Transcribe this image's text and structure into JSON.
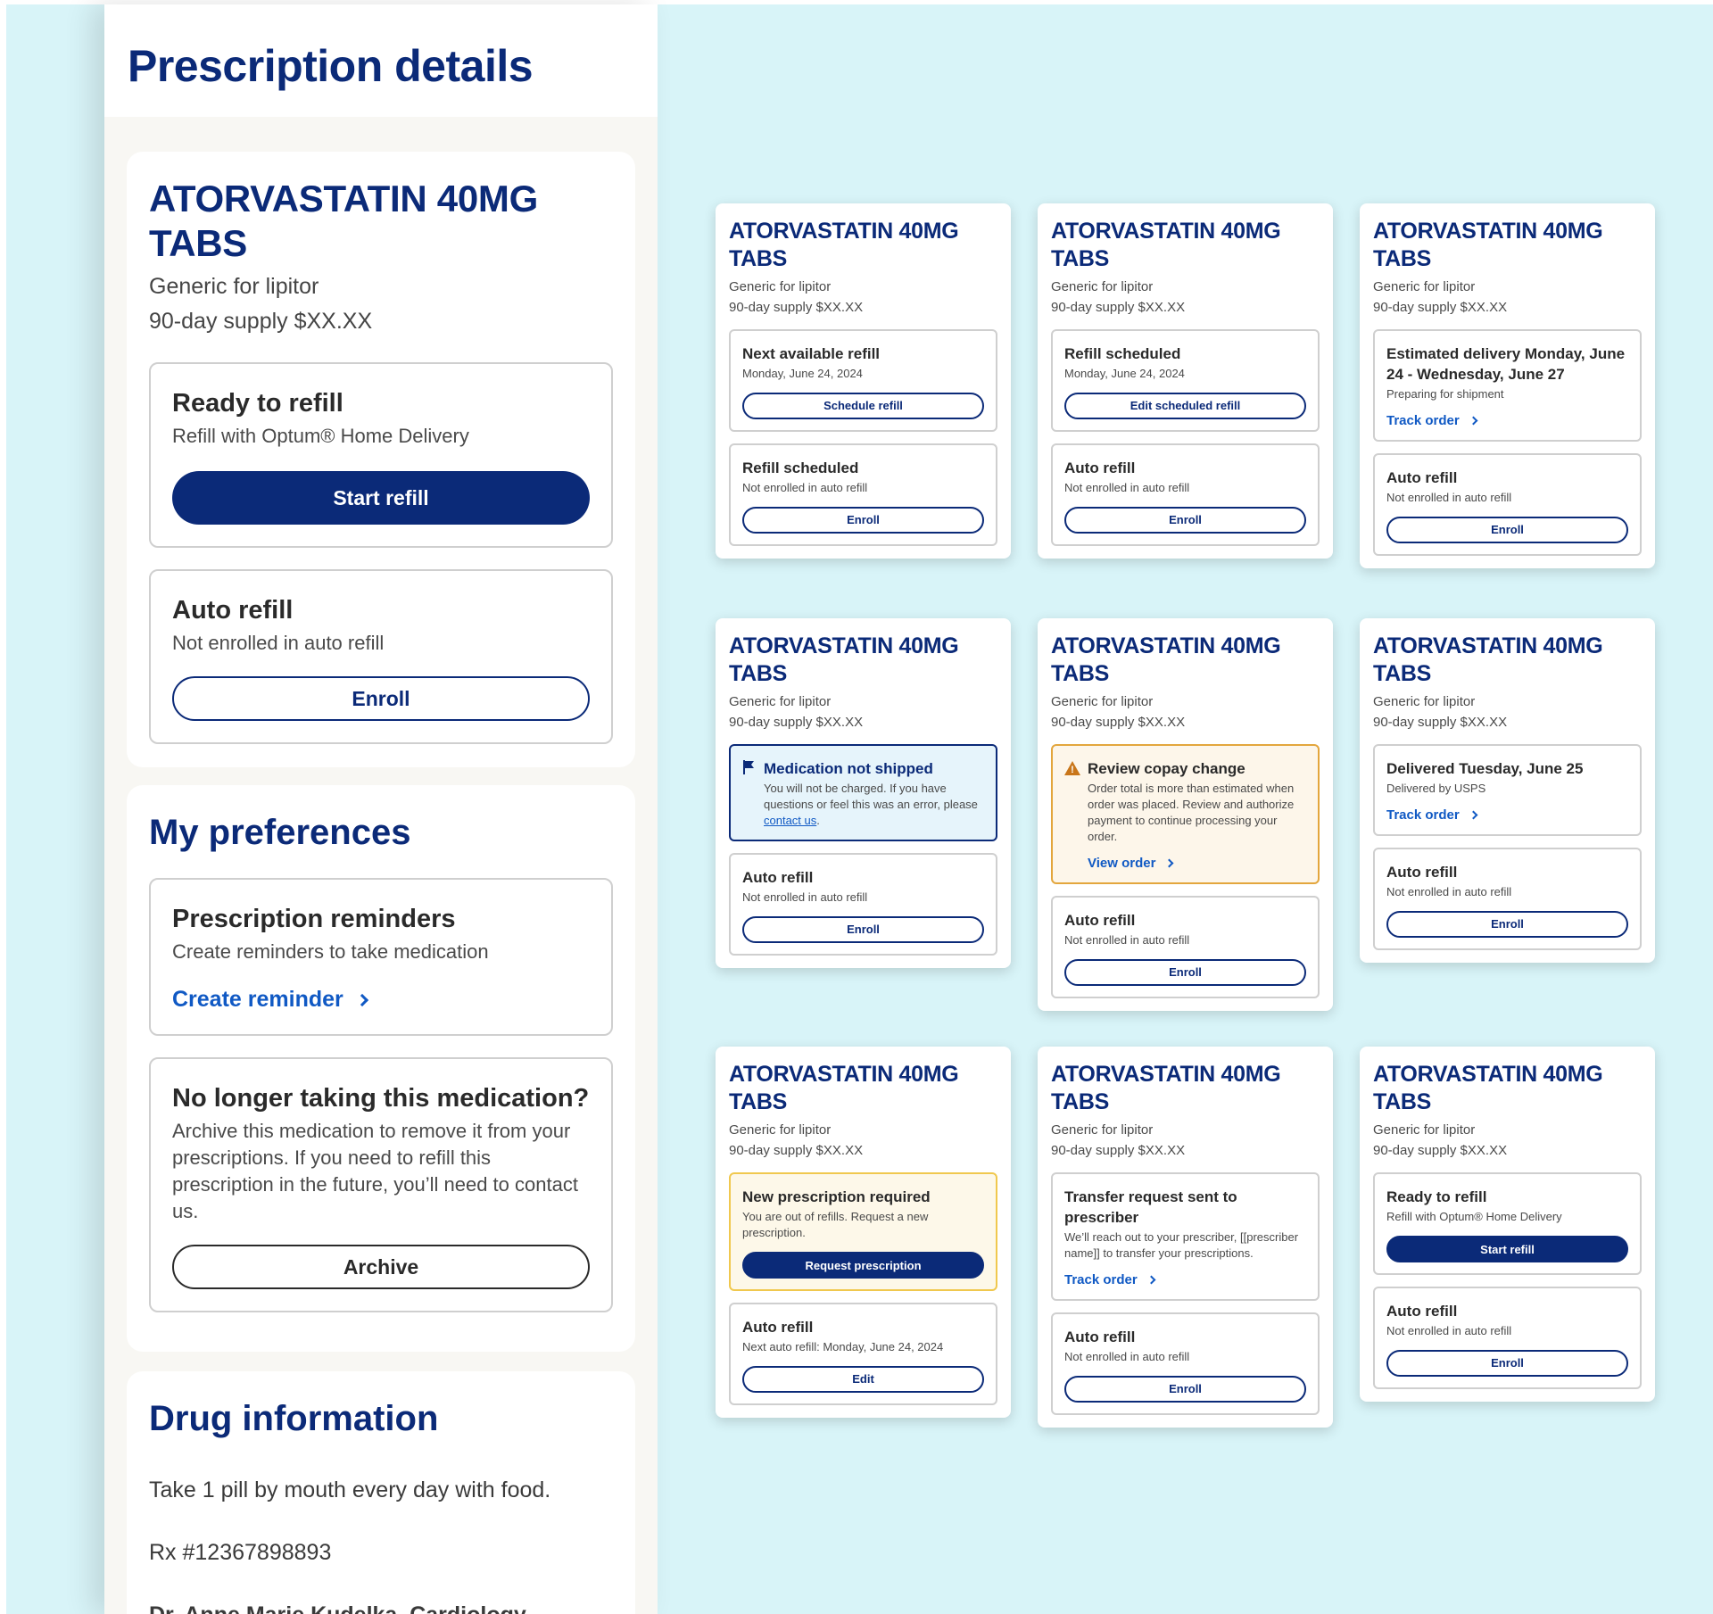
{
  "panel": {
    "page_title": "Prescription details",
    "drug": {
      "name": "ATORVASTATIN 40MG TABS",
      "generic": "Generic for lipitor",
      "supply": "90-day supply $XX.XX"
    },
    "ready_box": {
      "title": "Ready to refill",
      "subtitle": "Refill with Optum® Home Delivery",
      "button": "Start refill"
    },
    "auto_box": {
      "title": "Auto refill",
      "subtitle": "Not enrolled in auto refill",
      "button": "Enroll"
    },
    "preferences": {
      "title": "My preferences",
      "reminders_title": "Prescription reminders",
      "reminders_sub": "Create reminders to take medication",
      "reminders_link": "Create reminder",
      "archive_title": "No longer taking this medication?",
      "archive_sub": "Archive this medication to remove it from your prescriptions. If you need to refill this prescription in the future, you’ll need to contact us.",
      "archive_button": "Archive"
    },
    "drug_info": {
      "title": "Drug information",
      "directions": "Take 1 pill by mouth every day with food.",
      "rx": "Rx #12367898893",
      "prescriber": "Dr. Anne Marie Kudelka, Cardiology"
    }
  },
  "cards": {
    "drug_name": "ATORVASTATIN 40MG TABS",
    "generic": "Generic for lipitor",
    "supply": "90-day supply $XX.XX",
    "c1": {
      "b1_title": "Next available refill",
      "b1_sub": "Monday, June 24, 2024",
      "b1_btn": "Schedule refill",
      "b2_title": "Refill scheduled",
      "b2_sub": "Not enrolled in auto refill",
      "b2_btn": "Enroll"
    },
    "c2": {
      "b1_title": "Refill scheduled",
      "b1_sub": "Monday, June 24, 2024",
      "b1_btn": "Edit scheduled refill",
      "b2_title": "Auto refill",
      "b2_sub": "Not enrolled in auto refill",
      "b2_btn": "Enroll"
    },
    "c3": {
      "b1_title": "Estimated delivery Monday, June 24 - Wednesday, June 27",
      "b1_sub": "Preparing for shipment",
      "b1_link": "Track order",
      "b2_title": "Auto refill",
      "b2_sub": "Not enrolled in auto refill",
      "b2_btn": "Enroll"
    },
    "c4": {
      "b1_title": "Medication not shipped",
      "b1_sub": "You will not be charged. If you have questions or feel this was an error, please ",
      "b1_link": "contact us",
      "b1_end": ".",
      "b2_title": "Auto refill",
      "b2_sub": "Not enrolled in auto refill",
      "b2_btn": "Enroll"
    },
    "c5": {
      "b1_title": "Review copay change",
      "b1_sub": "Order total is more than estimated when order was placed. Review and authorize payment to continue processing your order.",
      "b1_link": "View order",
      "b2_title": "Auto refill",
      "b2_sub": "Not enrolled in auto refill",
      "b2_btn": "Enroll"
    },
    "c6": {
      "b1_title": "Delivered Tuesday, June 25",
      "b1_sub": "Delivered by USPS",
      "b1_link": "Track order",
      "b2_title": "Auto refill",
      "b2_sub": "Not enrolled in auto refill",
      "b2_btn": "Enroll"
    },
    "c7": {
      "b1_title": "New prescription required",
      "b1_sub": "You are out of refills. Request a new prescription.",
      "b1_btn": "Request prescription",
      "b2_title": "Auto refill",
      "b2_sub": "Next auto refill: Monday, June 24, 2024",
      "b2_btn": "Edit"
    },
    "c8": {
      "b1_title": "Transfer request sent to prescriber",
      "b1_sub": "We’ll reach out to your prescriber, [[prescriber name]] to transfer your prescriptions.",
      "b1_link": "Track order",
      "b2_title": "Auto refill",
      "b2_sub": "Not enrolled in auto refill",
      "b2_btn": "Enroll"
    },
    "c9": {
      "b1_title": "Ready to refill",
      "b1_sub": "Refill with Optum® Home Delivery",
      "b1_btn": "Start refill",
      "b2_title": "Auto refill",
      "b2_sub": "Not enrolled in auto refill",
      "b2_btn": "Enroll"
    }
  },
  "colors": {
    "navy": "#0b2a78",
    "link_blue": "#1059c4",
    "canvas_bg": "#d8f4f8",
    "panel_bg": "#f8f7f3",
    "info_bg": "#e6f4fb",
    "warning_border": "#e3a63d",
    "pending_border": "#f0c84e"
  }
}
